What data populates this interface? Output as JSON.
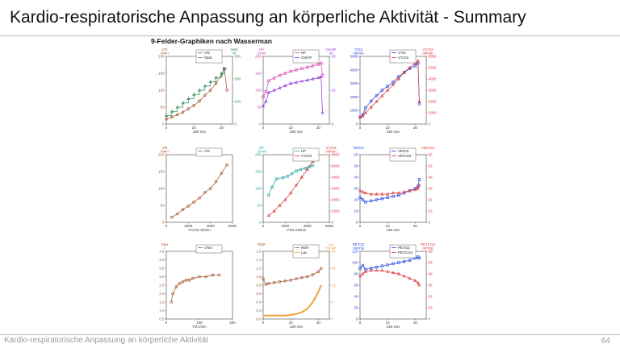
{
  "slide": {
    "title": "Kardio-respiratorische Anpassung an körperliche Aktivität - Summary",
    "section_title": "9-Felder-Graphiken nach Wasserman",
    "footer": "Kardio-respiratorische Anpassung an körperliche Aktivität",
    "page_number": "64"
  },
  "colors": {
    "brown": "#a0522d",
    "green": "#2e8b57",
    "magenta": "#d040b0",
    "purple": "#8a2be2",
    "blue": "#2040e0",
    "red": "#e03030",
    "teal": "#20a0a0",
    "orange": "#f0a040"
  },
  "chart_data": [
    {
      "type": "line",
      "panel": 1,
      "x_unit": "Zeit min",
      "xticks": [
        "0",
        "10",
        "20"
      ],
      "xlim": [
        0,
        24
      ],
      "left_axis": {
        "unit": "V'E\nl/min",
        "ticks": [
          "0",
          "50",
          "100",
          "150",
          "200"
        ],
        "lim": [
          0,
          200
        ]
      },
      "right_axis": {
        "unit": "Watt\nW",
        "ticks": [
          "0",
          "100",
          "200",
          "300"
        ],
        "lim": [
          0,
          400
        ]
      },
      "series": [
        {
          "name": "V'E",
          "axis": "left",
          "color": "brown",
          "x": [
            0,
            2,
            4,
            6,
            8,
            10,
            12,
            14,
            16,
            18,
            20,
            21,
            22
          ],
          "y": [
            15,
            20,
            28,
            35,
            45,
            55,
            68,
            85,
            100,
            120,
            145,
            165,
            100
          ]
        },
        {
          "name": "Watt",
          "axis": "right",
          "color": "green",
          "step": true,
          "x": [
            0,
            2,
            4,
            6,
            8,
            10,
            12,
            14,
            16,
            18,
            20,
            21
          ],
          "y": [
            50,
            75,
            100,
            125,
            150,
            175,
            200,
            225,
            250,
            275,
            300,
            325
          ]
        }
      ]
    },
    {
      "type": "line",
      "panel": 2,
      "x_unit": "Zeit min",
      "xticks": [
        "0",
        "10",
        "20"
      ],
      "xlim": [
        0,
        24
      ],
      "left_axis": {
        "unit": "HF\n1/min",
        "ticks": [
          "0",
          "50",
          "100",
          "150",
          "200"
        ],
        "lim": [
          0,
          250
        ]
      },
      "right_axis": {
        "unit": "O2/HF\nml",
        "ticks": [
          "0",
          "10",
          "20"
        ],
        "lim": [
          0,
          30
        ]
      },
      "series": [
        {
          "name": "HF",
          "axis": "left",
          "color": "magenta",
          "x": [
            0,
            1,
            2,
            4,
            6,
            8,
            10,
            12,
            14,
            16,
            18,
            20,
            21,
            21.5
          ],
          "y": [
            100,
            120,
            160,
            170,
            180,
            188,
            195,
            200,
            205,
            210,
            215,
            220,
            225,
            180
          ]
        },
        {
          "name": "O2/HF",
          "axis": "right",
          "color": "purple",
          "x": [
            0,
            1,
            2,
            4,
            6,
            8,
            10,
            12,
            14,
            16,
            18,
            20,
            21,
            21.5
          ],
          "y": [
            8,
            10,
            14,
            15,
            16,
            17,
            18,
            18.5,
            19,
            19.5,
            20,
            20.5,
            21,
            5
          ]
        }
      ]
    },
    {
      "type": "line",
      "panel": 3,
      "x_unit": "Zeit min",
      "xticks": [
        "0",
        "10",
        "20"
      ],
      "xlim": [
        0,
        24
      ],
      "left_axis": {
        "unit": "V'O2\nml/min",
        "ticks": [
          "0",
          "1000",
          "2000",
          "3000",
          "4000",
          "5000"
        ],
        "lim": [
          0,
          5000
        ]
      },
      "right_axis": {
        "unit": "V'CO2\nml/min",
        "ticks": [
          "0",
          "1000",
          "2000",
          "3000",
          "4000",
          "5000",
          "6000"
        ],
        "lim": [
          0,
          6000
        ]
      },
      "series": [
        {
          "name": "V'O2",
          "axis": "left",
          "color": "blue",
          "x": [
            0,
            1,
            2,
            4,
            6,
            8,
            10,
            12,
            14,
            16,
            18,
            20,
            21,
            21.5
          ],
          "y": [
            500,
            700,
            1200,
            1700,
            2100,
            2500,
            2800,
            3100,
            3500,
            3800,
            4100,
            4300,
            4500,
            1500
          ]
        },
        {
          "name": "V'CO2",
          "axis": "right",
          "color": "red",
          "x": [
            0,
            1,
            2,
            4,
            6,
            8,
            10,
            12,
            14,
            16,
            18,
            20,
            21,
            21.5
          ],
          "y": [
            600,
            700,
            1000,
            1500,
            2000,
            2500,
            3000,
            3500,
            4000,
            4600,
            5000,
            5400,
            5600,
            2000
          ]
        }
      ]
    },
    {
      "type": "scatter",
      "panel": 4,
      "x_unit": "V'CO2 ml/min",
      "xticks": [
        "0",
        "2000",
        "4000",
        "6000"
      ],
      "xlim": [
        0,
        6000
      ],
      "left_axis": {
        "unit": "V'E\nl/min",
        "ticks": [
          "0",
          "50",
          "100",
          "150",
          "200"
        ],
        "lim": [
          0,
          200
        ]
      },
      "series": [
        {
          "name": "V'E",
          "axis": "left",
          "color": "brown",
          "x": [
            500,
            1000,
            1500,
            2000,
            2500,
            3000,
            3500,
            4000,
            4500,
            5000,
            5500
          ],
          "y": [
            15,
            25,
            38,
            48,
            60,
            72,
            88,
            100,
            120,
            145,
            170
          ]
        }
      ]
    },
    {
      "type": "scatter",
      "panel": 5,
      "x_unit": "V'O2 ml/min",
      "xticks": [
        "0",
        "2000",
        "4000",
        "6000"
      ],
      "xlim": [
        0,
        6000
      ],
      "left_axis": {
        "unit": "HF\n1/min",
        "ticks": [
          "0",
          "50",
          "100",
          "150",
          "200"
        ],
        "lim": [
          0,
          250
        ]
      },
      "right_axis": {
        "unit": "V'CO2\nml/min",
        "ticks": [
          "0",
          "1000",
          "2000",
          "3000",
          "4000",
          "5000",
          "6000"
        ],
        "lim": [
          0,
          6000
        ]
      },
      "series": [
        {
          "name": "HF",
          "axis": "left",
          "color": "teal",
          "x": [
            500,
            800,
            1200,
            1800,
            2200,
            2600,
            3000,
            3400,
            3800,
            4200,
            4500
          ],
          "y": [
            100,
            130,
            160,
            165,
            170,
            180,
            190,
            195,
            200,
            205,
            210
          ]
        },
        {
          "name": "V'CO2",
          "axis": "right",
          "color": "red",
          "x": [
            500,
            1000,
            1500,
            2000,
            2500,
            3000,
            3500,
            4000,
            4500
          ],
          "y": [
            600,
            1000,
            1500,
            2000,
            2600,
            3300,
            4000,
            4700,
            5400
          ]
        }
      ]
    },
    {
      "type": "line",
      "panel": 6,
      "x_unit": "Zeit min",
      "xticks": [
        "0",
        "10",
        "20"
      ],
      "xlim": [
        0,
        24
      ],
      "left_axis": {
        "unit": "VE/O2",
        "ticks": [
          "0",
          "10",
          "20",
          "30",
          "40",
          "50",
          "60"
        ],
        "lim": [
          0,
          60
        ]
      },
      "right_axis": {
        "unit": "VE/CO2",
        "ticks": [
          "0",
          "10",
          "20",
          "30",
          "40",
          "50",
          "60"
        ],
        "lim": [
          0,
          60
        ]
      },
      "series": [
        {
          "name": "VE/O2",
          "axis": "left",
          "color": "blue",
          "x": [
            0,
            1,
            2,
            4,
            6,
            8,
            10,
            12,
            14,
            16,
            18,
            20,
            21,
            21.5
          ],
          "y": [
            22,
            20,
            18,
            19,
            20,
            21,
            22,
            23,
            24,
            26,
            28,
            30,
            32,
            38
          ]
        },
        {
          "name": "VE/CO2",
          "axis": "right",
          "color": "red",
          "x": [
            0,
            1,
            2,
            4,
            6,
            8,
            10,
            12,
            14,
            16,
            18,
            20,
            21,
            21.5
          ],
          "y": [
            28,
            27,
            26,
            25,
            25,
            25,
            25,
            26,
            26,
            27,
            28,
            29,
            30,
            33
          ]
        }
      ]
    },
    {
      "type": "scatter",
      "panel": 7,
      "x_unit": "V'E l/min",
      "xticks": [
        "0",
        "100",
        "200"
      ],
      "xlim": [
        0,
        200
      ],
      "left_axis": {
        "unit": "Vtex\nl",
        "ticks": [
          "0.5",
          "1.0",
          "1.5",
          "2.0",
          "2.5",
          "3.0",
          "3.5",
          "4.0",
          "4.5"
        ],
        "lim": [
          0.5,
          4.5
        ]
      },
      "series": [
        {
          "name": "VTex",
          "axis": "left",
          "color": "brown",
          "x": [
            15,
            20,
            30,
            40,
            50,
            60,
            70,
            80,
            100,
            120,
            140,
            160
          ],
          "y": [
            1.5,
            2.0,
            2.4,
            2.6,
            2.7,
            2.8,
            2.8,
            2.9,
            3.0,
            3.0,
            3.1,
            3.1
          ]
        }
      ]
    },
    {
      "type": "line",
      "panel": 8,
      "x_unit": "Zeit min",
      "xticks": [
        "0",
        "10",
        "20"
      ],
      "xlim": [
        0,
        24
      ],
      "left_axis": {
        "unit": "RER",
        "ticks": [
          "0.0",
          "0.2",
          "0.4",
          "0.6",
          "0.8",
          "1.0",
          "1.2",
          "1.4",
          "1.6"
        ],
        "lim": [
          0,
          1.6
        ]
      },
      "right_axis": {
        "unit": "Lac\nmmol/l",
        "ticks": [
          "0",
          "5",
          "10",
          "15",
          "20"
        ],
        "lim": [
          0,
          20
        ]
      },
      "series": [
        {
          "name": "RER",
          "axis": "left",
          "color": "brown",
          "x": [
            0,
            1,
            2,
            4,
            6,
            8,
            10,
            12,
            14,
            16,
            18,
            20,
            21
          ],
          "y": [
            0.95,
            0.82,
            0.84,
            0.86,
            0.88,
            0.9,
            0.92,
            0.95,
            0.98,
            1.0,
            1.05,
            1.12,
            1.2
          ]
        },
        {
          "name": "Lac",
          "axis": "right",
          "color": "orange",
          "x": [
            0,
            2,
            4,
            6,
            8,
            10,
            12,
            14,
            16,
            18,
            20,
            21
          ],
          "y": [
            1,
            1,
            1,
            1,
            1,
            1.2,
            1.5,
            2,
            3,
            5,
            8,
            10
          ]
        }
      ]
    },
    {
      "type": "line",
      "panel": 9,
      "x_unit": "Zeit min",
      "xticks": [
        "0",
        "10",
        "20"
      ],
      "xlim": [
        0,
        24
      ],
      "left_axis": {
        "unit": "PETO2\nmmHg",
        "ticks": [
          "0",
          "20",
          "40",
          "60",
          "80",
          "100",
          "120"
        ],
        "lim": [
          0,
          120
        ]
      },
      "right_axis": {
        "unit": "PETCO2\nmmHg",
        "ticks": [
          "0",
          "10",
          "20",
          "30",
          "40",
          "50",
          "60"
        ],
        "lim": [
          0,
          60
        ]
      },
      "series": [
        {
          "name": "PETO2",
          "axis": "left",
          "color": "blue",
          "x": [
            0,
            1,
            2,
            4,
            6,
            8,
            10,
            12,
            14,
            16,
            18,
            20,
            21,
            21.5
          ],
          "y": [
            90,
            95,
            88,
            90,
            92,
            94,
            96,
            98,
            100,
            102,
            104,
            108,
            110,
            108
          ]
        },
        {
          "name": "PETCO2",
          "axis": "right",
          "color": "red",
          "x": [
            0,
            1,
            2,
            4,
            6,
            8,
            10,
            12,
            14,
            16,
            18,
            20,
            21,
            21.5
          ],
          "y": [
            38,
            40,
            42,
            43,
            43,
            43,
            42,
            41,
            40,
            38,
            36,
            34,
            32,
            30
          ]
        }
      ]
    }
  ]
}
